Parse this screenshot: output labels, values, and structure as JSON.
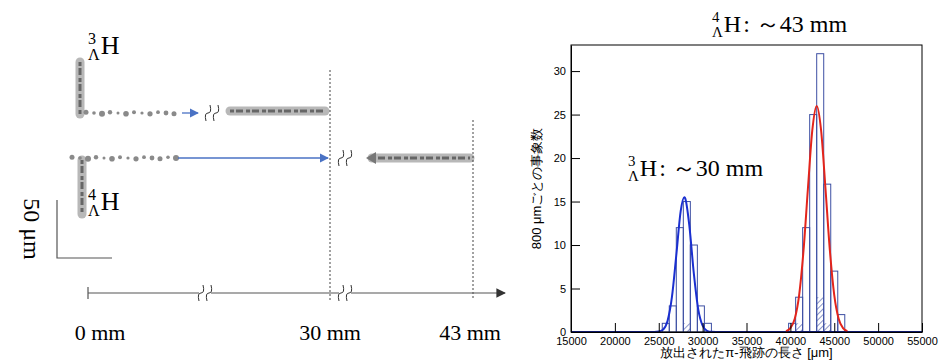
{
  "chart_data": {
    "type": "histogram",
    "x_label": "放出されたπ-飛跡の長さ [μm]",
    "y_label": "800 μmごとの事象数",
    "annotations": [
      {
        "mass": "3",
        "sub": "Λ",
        "symbol": "H",
        "text": ": ～30 mm"
      },
      {
        "mass": "4",
        "sub": "Λ",
        "symbol": "H",
        "text": ": ～43 mm"
      }
    ],
    "bins": [
      15000,
      15800,
      16600,
      17400,
      18200,
      19000,
      19800,
      20600,
      21400,
      22200,
      23000,
      23800,
      24600,
      25400,
      26200,
      27000,
      27800,
      28600,
      29400,
      30200,
      31000,
      31800,
      32600,
      33400,
      34200,
      35000,
      35800,
      36600,
      37400,
      38200,
      39000,
      39800,
      40600,
      41400,
      42200,
      43000,
      43800,
      44600,
      45400,
      46200,
      47000,
      47800,
      48600,
      49400,
      50200,
      51000,
      51800,
      52600,
      53400,
      54200,
      55000
    ],
    "series": [
      {
        "type": "histogram",
        "color": "#3d4fa3",
        "counts": [
          0,
          0,
          0,
          0,
          0,
          0,
          0,
          0,
          0,
          0,
          0,
          0,
          0,
          1,
          3,
          12,
          15,
          10,
          3,
          1,
          0,
          0,
          0,
          0,
          0,
          0,
          0,
          0,
          0,
          0,
          0,
          1,
          4,
          12,
          25,
          32,
          17,
          7,
          2,
          0,
          0,
          0,
          0,
          0,
          0,
          0,
          0,
          0,
          0,
          0
        ]
      },
      {
        "type": "hatched",
        "color": "#3d4fa3",
        "counts": [
          0,
          0,
          0,
          0,
          0,
          0,
          0,
          0,
          0,
          0,
          0,
          0,
          0,
          0,
          0,
          0,
          1,
          0,
          0,
          0,
          0,
          0,
          0,
          0,
          0,
          0,
          0,
          0,
          0,
          0,
          0,
          0,
          1,
          0,
          0,
          4,
          1,
          0,
          0,
          0,
          0,
          0,
          0,
          0,
          0,
          0,
          0,
          0,
          0,
          0
        ]
      },
      {
        "type": "line",
        "color": "#1a2fd0",
        "x": [
          15000,
          24500,
          25000,
          25500,
          26000,
          26500,
          27000,
          27500,
          27900,
          28000,
          28500,
          29000,
          29500,
          30000,
          30500,
          31000,
          32000,
          55000
        ],
        "values": [
          0,
          0,
          0.05,
          0.29,
          1.27,
          4.0,
          8.85,
          13.9,
          15.5,
          15.4,
          12.1,
          6.7,
          2.6,
          0.73,
          0.14,
          0.02,
          0,
          0
        ]
      },
      {
        "type": "line",
        "color": "#e3241b",
        "x": [
          39500,
          40000,
          40500,
          41000,
          41500,
          42000,
          42500,
          43000,
          43500,
          44000,
          44500,
          45000,
          45500,
          46000,
          46500
        ],
        "values": [
          0.1,
          0.44,
          1.53,
          4.25,
          9.4,
          16.5,
          23.2,
          26,
          23.2,
          16.5,
          9.4,
          4.25,
          1.53,
          0.44,
          0.1
        ]
      }
    ],
    "xlim": [
      15000,
      55000
    ],
    "xticks": [
      15000,
      20000,
      25000,
      30000,
      35000,
      40000,
      45000,
      50000,
      55000
    ],
    "ylim": [
      0,
      33
    ],
    "yticks": [
      0,
      5,
      10,
      15,
      20,
      25,
      30
    ]
  },
  "diagram": {
    "tracks": [
      {
        "mass": "3",
        "sub": "Λ",
        "symbol": "H"
      },
      {
        "mass": "4",
        "sub": "Λ",
        "symbol": "H"
      }
    ],
    "scale_bar": "50 μm",
    "distances": [
      "0 mm",
      "30 mm",
      "43 mm"
    ]
  }
}
